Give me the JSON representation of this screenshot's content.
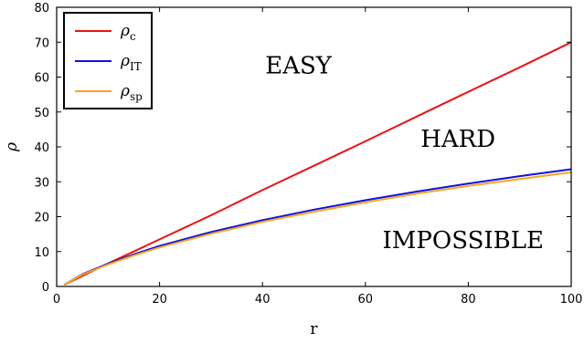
{
  "chart_data": {
    "type": "line",
    "xlabel": "r",
    "ylabel": "ρ",
    "xlim": [
      0,
      100
    ],
    "ylim": [
      0,
      80
    ],
    "xticks": [
      0,
      20,
      40,
      60,
      80,
      100
    ],
    "yticks": [
      0,
      10,
      20,
      30,
      40,
      50,
      60,
      70,
      80
    ],
    "grid": false,
    "legend_position": "top-left",
    "series": [
      {
        "key": "rho_c",
        "name": "ρc",
        "symbol": "ρ",
        "subscript": "c",
        "color": "#ee1111",
        "x": [
          1.5,
          10,
          20,
          30,
          40,
          50,
          60,
          70,
          80,
          90,
          100
        ],
        "y": [
          0.5,
          6.6,
          13.5,
          20.4,
          27.6,
          34.6,
          41.6,
          48.7,
          55.8,
          62.8,
          70.0
        ]
      },
      {
        "key": "rho_it",
        "name": "ρIT",
        "symbol": "ρ",
        "subscript": "IT",
        "color": "#1010dd",
        "x": [
          1.5,
          5,
          10,
          15,
          20,
          30,
          40,
          50,
          60,
          70,
          80,
          90,
          100
        ],
        "y": [
          0.5,
          3.5,
          6.5,
          9.2,
          11.6,
          15.6,
          19.0,
          22.0,
          24.7,
          27.2,
          29.5,
          31.6,
          33.6
        ]
      },
      {
        "key": "rho_sp",
        "name": "ρsp",
        "symbol": "ρ",
        "subscript": "sp",
        "color": "#f5a623",
        "x": [
          1.5,
          5,
          10,
          15,
          20,
          30,
          40,
          50,
          60,
          70,
          80,
          90,
          100
        ],
        "y": [
          0.5,
          3.4,
          6.3,
          8.9,
          11.2,
          15.1,
          18.5,
          21.4,
          24.1,
          26.6,
          28.8,
          30.8,
          32.7
        ]
      }
    ],
    "annotations": [
      {
        "key": "easy",
        "text": "EASY",
        "x": 47,
        "y": 61
      },
      {
        "key": "hard",
        "text": "HARD",
        "x": 78,
        "y": 40
      },
      {
        "key": "impossible",
        "text": "IMPOSSIBLE",
        "x": 79,
        "y": 11
      }
    ]
  }
}
